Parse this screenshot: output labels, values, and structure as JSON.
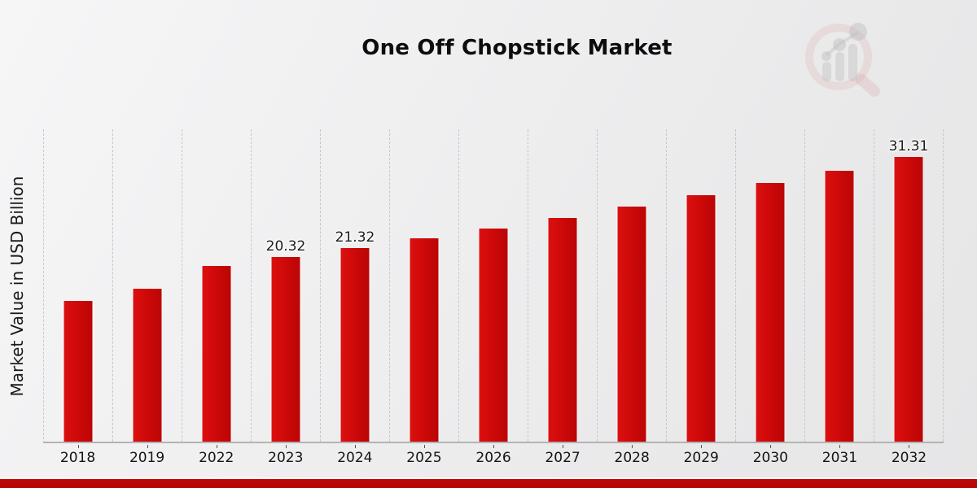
{
  "title": "One Off Chopstick Market",
  "y_axis_label": "Market Value in USD Billion",
  "logo": {
    "name": "market-research-watermark-logo"
  },
  "colors": {
    "bar": "#cb0808",
    "bar_highlight": "#dc1010",
    "footer_stripe": "#b70808",
    "gridline": "#c7c7c8",
    "axis_line": "#b3b3b4",
    "label_text": "#1c1c1c"
  },
  "chart_data": {
    "type": "bar",
    "title": "One Off Chopstick Market",
    "xlabel": "",
    "ylabel": "Market Value in USD Billion",
    "unit": "USD Billion",
    "categories": [
      "2018",
      "2019",
      "2022",
      "2023",
      "2024",
      "2025",
      "2026",
      "2027",
      "2028",
      "2029",
      "2030",
      "2031",
      "2032"
    ],
    "values": [
      15.48,
      16.79,
      19.37,
      20.32,
      21.32,
      22.37,
      23.47,
      24.62,
      25.83,
      27.11,
      28.44,
      29.84,
      31.31
    ],
    "data_labels": [
      "",
      "",
      "",
      "20.32",
      "21.32",
      "",
      "",
      "",
      "",
      "",
      "",
      "",
      "31.31"
    ],
    "ylim": [
      0,
      34.5
    ],
    "grid": "vertical-dashed",
    "legend": "none",
    "bar_color": "#cb0808"
  }
}
